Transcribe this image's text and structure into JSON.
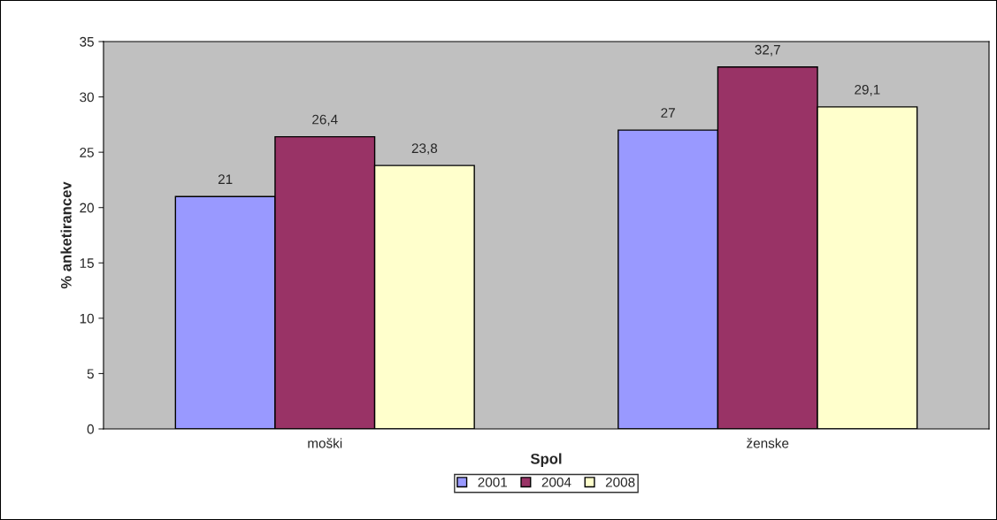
{
  "chart_data": {
    "type": "bar",
    "categories": [
      "moški",
      "ženske"
    ],
    "xlabel": "Spol",
    "ylabel": "% anketirancev",
    "series": [
      {
        "name": "2001",
        "color": "#9999ff",
        "values": [
          21,
          27
        ],
        "value_labels": [
          "21",
          "27"
        ]
      },
      {
        "name": "2004",
        "color": "#993366",
        "values": [
          26.4,
          32.7
        ],
        "value_labels": [
          "26,4",
          "32,7"
        ]
      },
      {
        "name": "2008",
        "color": "#ffffcc",
        "values": [
          23.8,
          29.1
        ],
        "value_labels": [
          "23,8",
          "29,1"
        ]
      }
    ],
    "ylim": [
      0,
      35
    ],
    "yticks": [
      0,
      5,
      10,
      15,
      20,
      25,
      30,
      35
    ],
    "grid": false,
    "legend": "bottom"
  }
}
